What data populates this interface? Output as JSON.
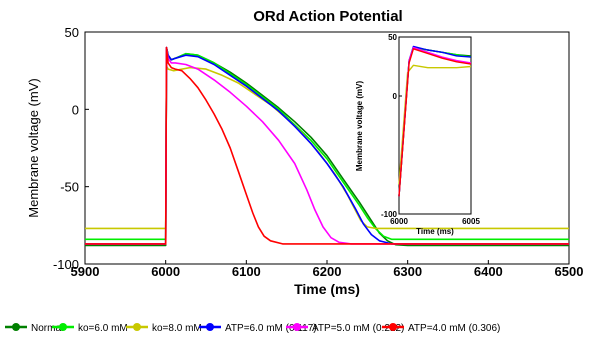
{
  "chart_data": [
    {
      "type": "line",
      "title": "ORd Action Potential",
      "xlabel": "Time (ms)",
      "ylabel": "Membrane voltage (mV)",
      "xlim": [
        5900,
        6500
      ],
      "ylim": [
        -100,
        50
      ],
      "x_ticks": [
        5900,
        6000,
        6100,
        6200,
        6300,
        6400,
        6500
      ],
      "y_ticks": [
        -100,
        -50,
        0,
        50
      ],
      "grid": false,
      "legend_position": "bottom",
      "series": [
        {
          "name": "Normal",
          "color": "#008000",
          "points": [
            [
              5900,
              -88
            ],
            [
              6000,
              -88
            ],
            [
              6001,
              40
            ],
            [
              6003,
              35
            ],
            [
              6007,
              32
            ],
            [
              6012,
              33
            ],
            [
              6025,
              36
            ],
            [
              6040,
              35
            ],
            [
              6060,
              30
            ],
            [
              6080,
              24
            ],
            [
              6100,
              17
            ],
            [
              6120,
              9
            ],
            [
              6140,
              1
            ],
            [
              6160,
              -8
            ],
            [
              6180,
              -18
            ],
            [
              6200,
              -30
            ],
            [
              6220,
              -45
            ],
            [
              6240,
              -60
            ],
            [
              6255,
              -72
            ],
            [
              6265,
              -80
            ],
            [
              6275,
              -85
            ],
            [
              6285,
              -87.5
            ],
            [
              6300,
              -88
            ],
            [
              6500,
              -88
            ]
          ]
        },
        {
          "name": "ko=6.0 mM",
          "color": "#00ee00",
          "points": [
            [
              5900,
              -84
            ],
            [
              6000,
              -84
            ],
            [
              6001,
              40
            ],
            [
              6003,
              35
            ],
            [
              6007,
              32
            ],
            [
              6012,
              33
            ],
            [
              6025,
              36
            ],
            [
              6040,
              35
            ],
            [
              6060,
              30
            ],
            [
              6080,
              23
            ],
            [
              6100,
              16
            ],
            [
              6120,
              8
            ],
            [
              6140,
              0
            ],
            [
              6160,
              -10
            ],
            [
              6180,
              -20
            ],
            [
              6200,
              -32
            ],
            [
              6220,
              -47
            ],
            [
              6240,
              -62
            ],
            [
              6250,
              -70
            ],
            [
              6260,
              -77
            ],
            [
              6270,
              -82
            ],
            [
              6280,
              -84
            ],
            [
              6500,
              -84
            ]
          ]
        },
        {
          "name": "ko=8.0 mM",
          "color": "#c8c800",
          "points": [
            [
              5900,
              -77
            ],
            [
              6000,
              -77
            ],
            [
              6001,
              28
            ],
            [
              6003,
              26
            ],
            [
              6010,
              25
            ],
            [
              6030,
              27
            ],
            [
              6050,
              26
            ],
            [
              6070,
              22
            ],
            [
              6090,
              17
            ],
            [
              6110,
              10
            ],
            [
              6130,
              3
            ],
            [
              6150,
              -6
            ],
            [
              6170,
              -16
            ],
            [
              6190,
              -28
            ],
            [
              6210,
              -42
            ],
            [
              6225,
              -55
            ],
            [
              6235,
              -65
            ],
            [
              6242,
              -72
            ],
            [
              6250,
              -76
            ],
            [
              6260,
              -77
            ],
            [
              6500,
              -77
            ]
          ]
        },
        {
          "name": "ATP=6.0 mM (0.117)",
          "color": "#0000ff",
          "points": [
            [
              5900,
              -87
            ],
            [
              6000,
              -87
            ],
            [
              6001,
              40
            ],
            [
              6003,
              35
            ],
            [
              6007,
              32
            ],
            [
              6012,
              33
            ],
            [
              6025,
              35
            ],
            [
              6040,
              34
            ],
            [
              6060,
              29
            ],
            [
              6080,
              22
            ],
            [
              6100,
              15
            ],
            [
              6120,
              7
            ],
            [
              6140,
              -1
            ],
            [
              6160,
              -11
            ],
            [
              6180,
              -22
            ],
            [
              6200,
              -35
            ],
            [
              6220,
              -50
            ],
            [
              6235,
              -64
            ],
            [
              6245,
              -74
            ],
            [
              6255,
              -81
            ],
            [
              6265,
              -85
            ],
            [
              6280,
              -87
            ],
            [
              6500,
              -87
            ]
          ]
        },
        {
          "name": "ATP=5.0 mM (0.212)",
          "color": "#ff00ff",
          "points": [
            [
              5900,
              -87
            ],
            [
              6000,
              -87
            ],
            [
              6001,
              40
            ],
            [
              6003,
              33
            ],
            [
              6007,
              30
            ],
            [
              6012,
              30
            ],
            [
              6025,
              29
            ],
            [
              6040,
              26
            ],
            [
              6060,
              19
            ],
            [
              6080,
              11
            ],
            [
              6100,
              2
            ],
            [
              6120,
              -8
            ],
            [
              6140,
              -20
            ],
            [
              6160,
              -35
            ],
            [
              6175,
              -52
            ],
            [
              6185,
              -65
            ],
            [
              6195,
              -76
            ],
            [
              6205,
              -83
            ],
            [
              6215,
              -86
            ],
            [
              6230,
              -87
            ],
            [
              6500,
              -87
            ]
          ]
        },
        {
          "name": "ATP=4.0 mM (0.306)",
          "color": "#ff0000",
          "points": [
            [
              5900,
              -87
            ],
            [
              6000,
              -87
            ],
            [
              6001,
              40
            ],
            [
              6003,
              30
            ],
            [
              6007,
              27
            ],
            [
              6012,
              26
            ],
            [
              6020,
              25
            ],
            [
              6030,
              20
            ],
            [
              6040,
              14
            ],
            [
              6050,
              6
            ],
            [
              6060,
              -3
            ],
            [
              6070,
              -13
            ],
            [
              6080,
              -25
            ],
            [
              6090,
              -40
            ],
            [
              6100,
              -55
            ],
            [
              6108,
              -67
            ],
            [
              6115,
              -76
            ],
            [
              6122,
              -82
            ],
            [
              6130,
              -85
            ],
            [
              6145,
              -87
            ],
            [
              6500,
              -87
            ]
          ]
        }
      ]
    },
    {
      "type": "line",
      "title": "",
      "xlabel": "Time (ms)",
      "ylabel": "Membrane voltage (mV)",
      "xlim": [
        6000,
        6005
      ],
      "ylim": [
        -100,
        50
      ],
      "x_ticks": [
        6000,
        6005
      ],
      "y_ticks": [
        -100,
        0,
        50
      ],
      "grid": false,
      "series": [
        {
          "color": "#008000",
          "points": [
            [
              6000,
              -85
            ],
            [
              6000.7,
              30
            ],
            [
              6001,
              41
            ],
            [
              6002,
              39
            ],
            [
              6003,
              37
            ],
            [
              6004,
              35
            ],
            [
              6005,
              34
            ]
          ]
        },
        {
          "color": "#00ee00",
          "points": [
            [
              6000,
              -85
            ],
            [
              6000.7,
              30
            ],
            [
              6001,
              41
            ],
            [
              6002,
              39
            ],
            [
              6003,
              37
            ],
            [
              6004,
              35
            ],
            [
              6005,
              33
            ]
          ]
        },
        {
          "color": "#c8c800",
          "points": [
            [
              6000,
              -75
            ],
            [
              6000.6,
              20
            ],
            [
              6001,
              26
            ],
            [
              6002,
              24
            ],
            [
              6003,
              24
            ],
            [
              6004,
              24
            ],
            [
              6005,
              25
            ]
          ]
        },
        {
          "color": "#0000ff",
          "points": [
            [
              6000,
              -85
            ],
            [
              6000.7,
              30
            ],
            [
              6001,
              42
            ],
            [
              6002,
              39
            ],
            [
              6003,
              37
            ],
            [
              6004,
              34
            ],
            [
              6005,
              33
            ]
          ]
        },
        {
          "color": "#ff00ff",
          "points": [
            [
              6000,
              -85
            ],
            [
              6000.7,
              30
            ],
            [
              6001,
              41
            ],
            [
              6002,
              37
            ],
            [
              6003,
              33
            ],
            [
              6004,
              30
            ],
            [
              6005,
              28
            ]
          ]
        },
        {
          "color": "#ff0000",
          "points": [
            [
              6000,
              -85
            ],
            [
              6000.7,
              28
            ],
            [
              6001,
              40
            ],
            [
              6002,
              36
            ],
            [
              6003,
              32
            ],
            [
              6004,
              29
            ],
            [
              6005,
              27
            ]
          ]
        }
      ]
    }
  ]
}
